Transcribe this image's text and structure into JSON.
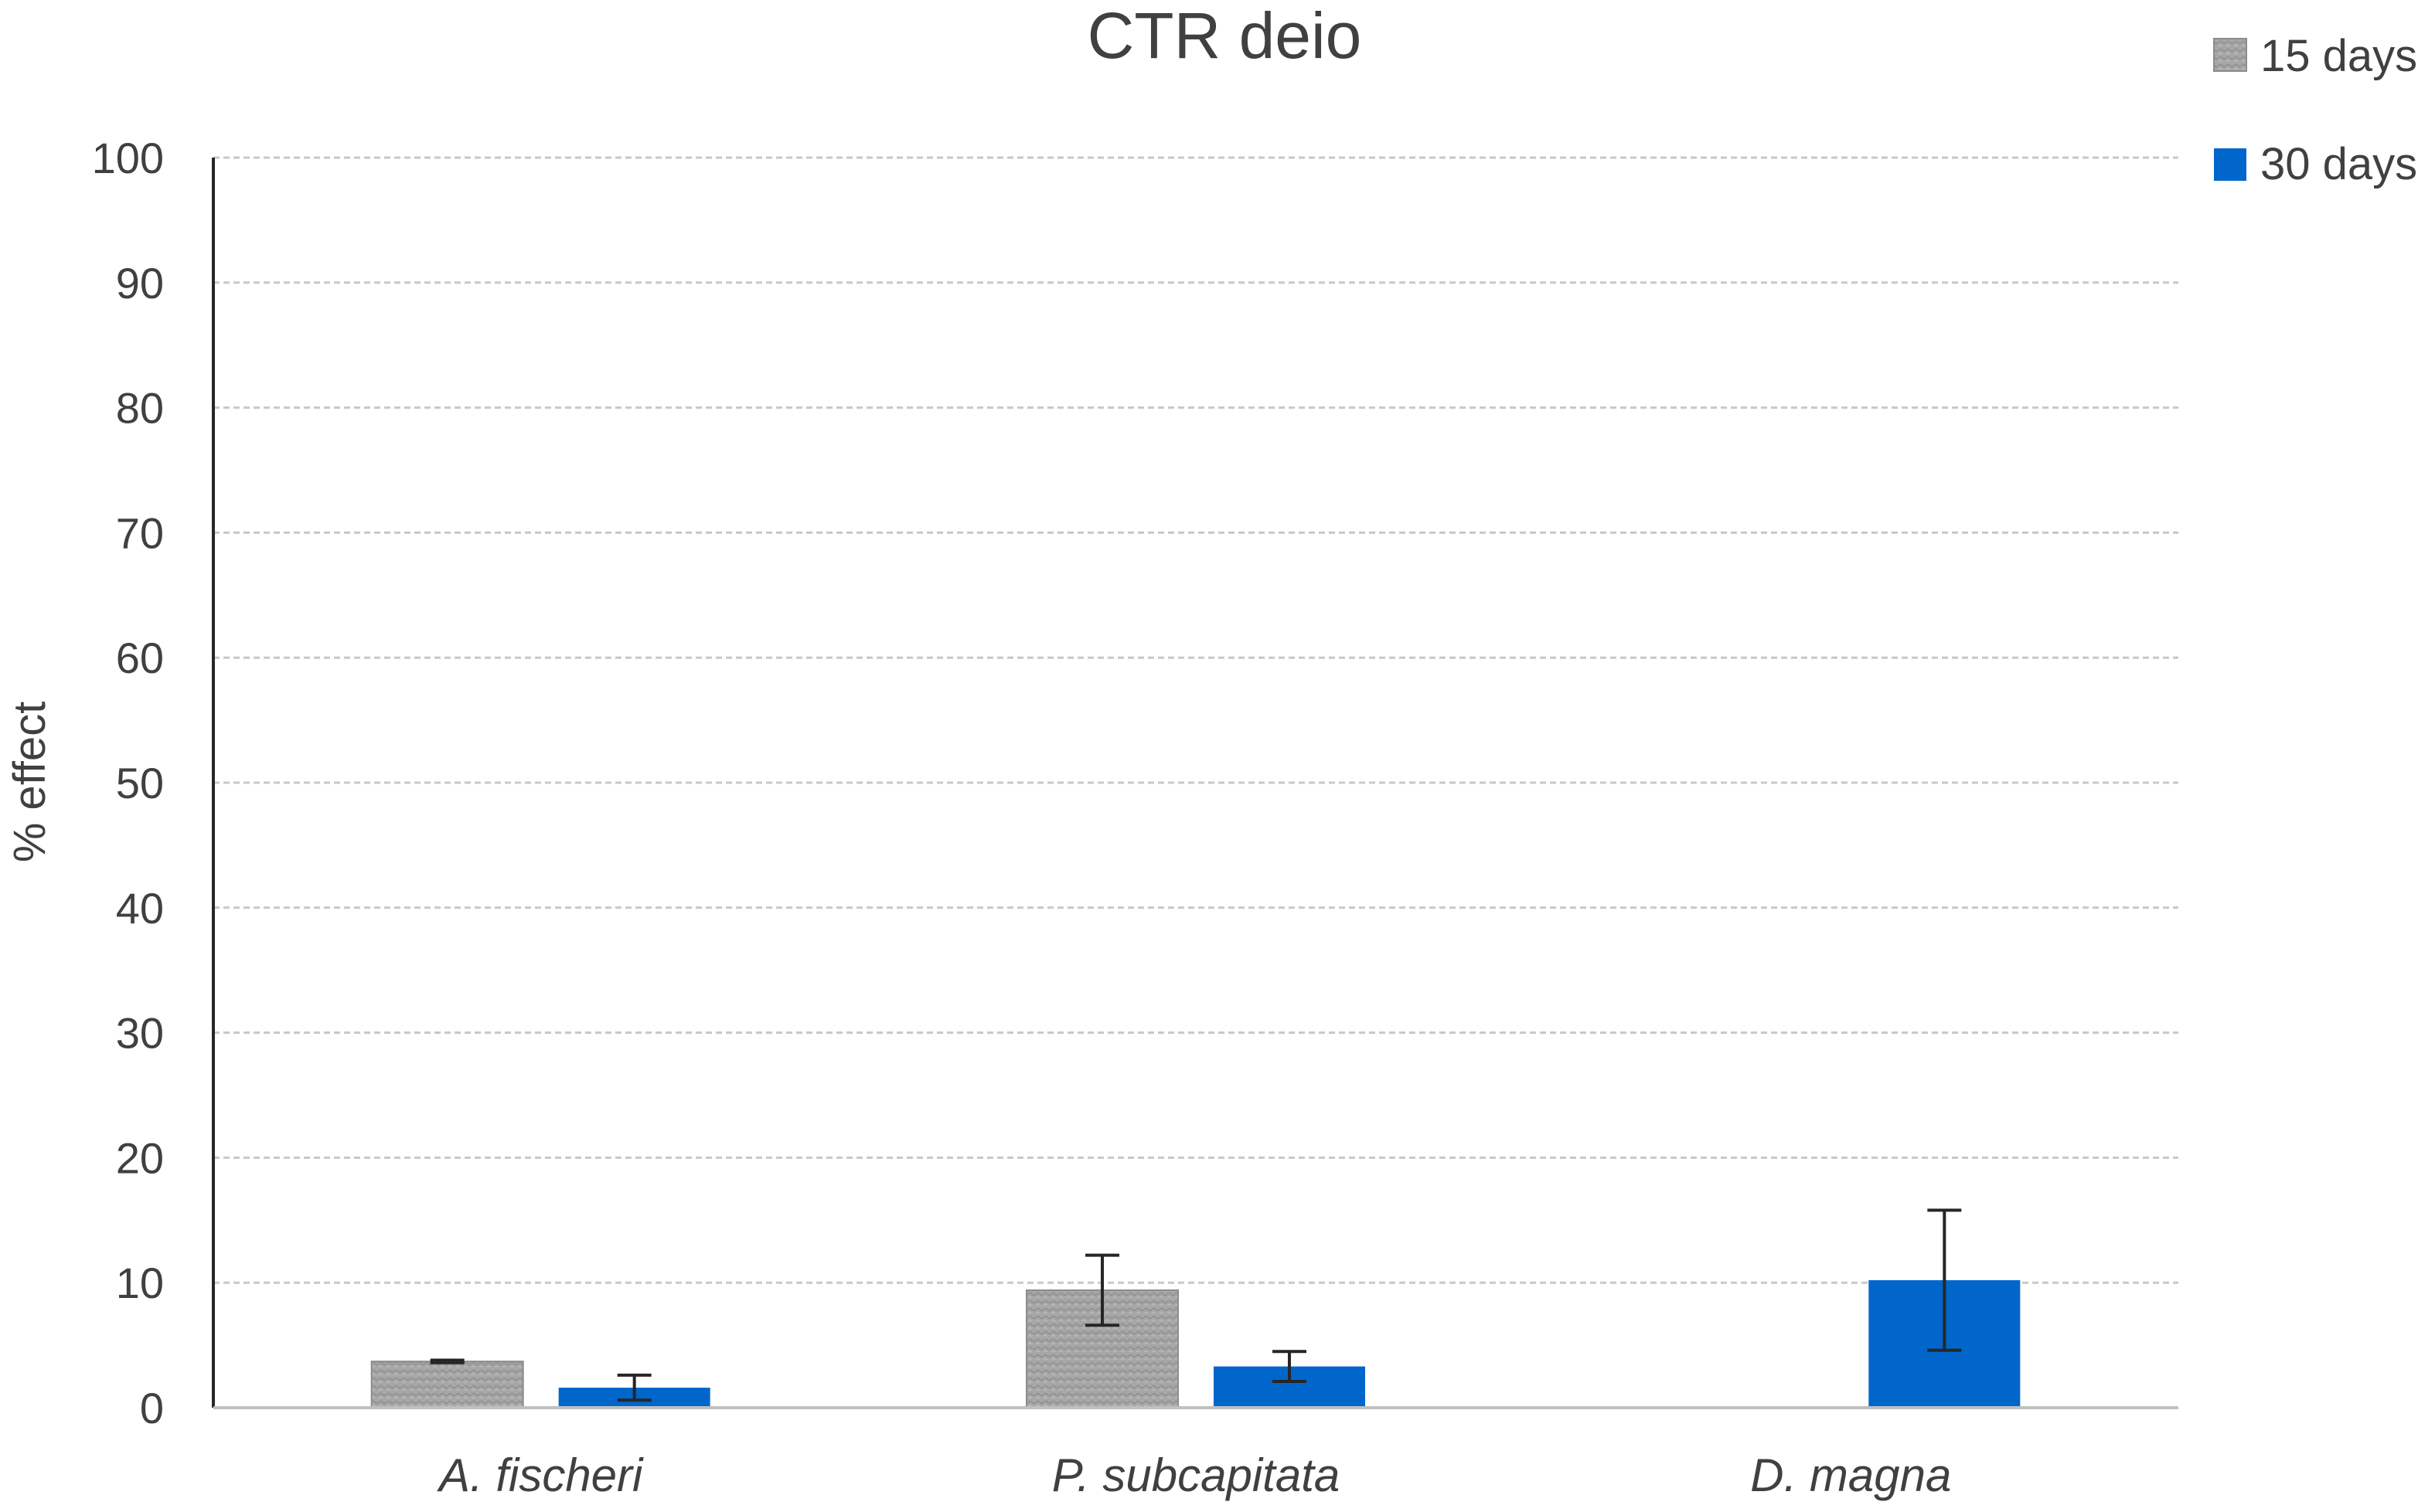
{
  "chart_data": {
    "type": "bar",
    "title": "CTR deio",
    "xlabel": "",
    "ylabel": "% effect",
    "ylim": [
      0,
      100
    ],
    "yticks": [
      0,
      10,
      20,
      30,
      40,
      50,
      60,
      70,
      80,
      90,
      100
    ],
    "grid": true,
    "legend_position": "top-right",
    "categories": [
      "A. fischeri",
      "P. subcapitata",
      "D. magna"
    ],
    "series": [
      {
        "name": "15 days",
        "color": "#a6a6a6",
        "values": [
          3.7,
          9.4,
          null
        ],
        "errors": [
          0.1,
          2.8,
          null
        ]
      },
      {
        "name": "30 days",
        "color": "#0066cc",
        "values": [
          1.6,
          3.3,
          10.2
        ],
        "errors": [
          1.0,
          1.2,
          5.6
        ]
      }
    ]
  }
}
